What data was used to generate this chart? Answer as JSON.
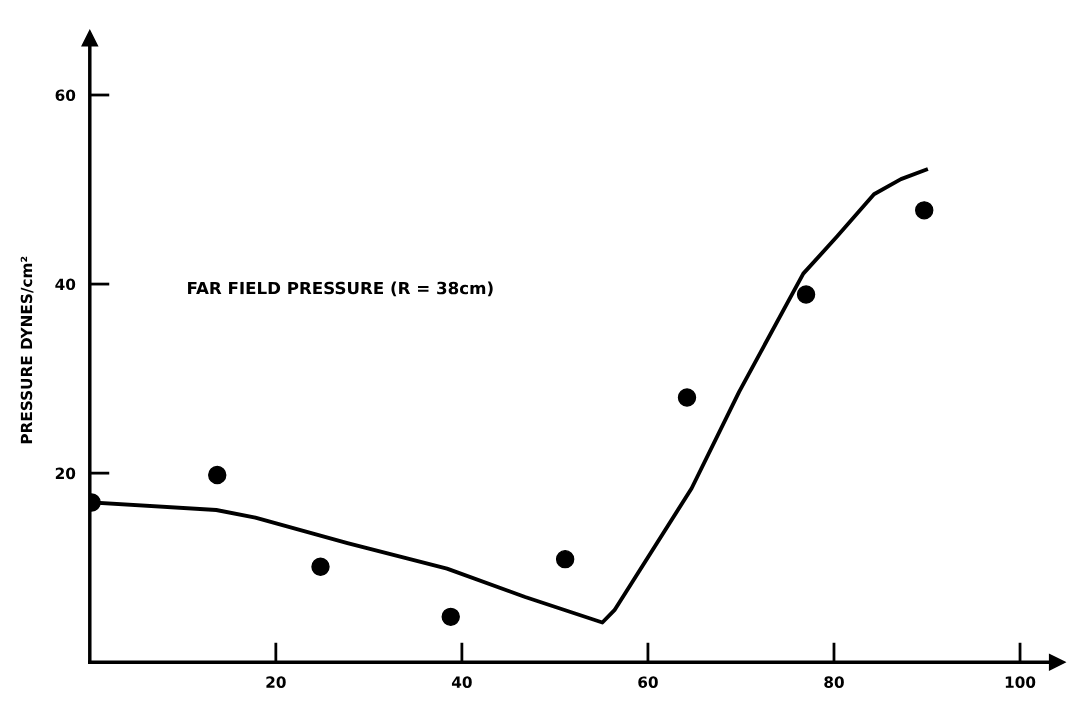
{
  "chart_data": {
    "type": "scatter",
    "ylabel": "PRESSURE DYNES/cm²",
    "annotations": [
      "FAR FIELD PRESSURE (R = 38cm)"
    ],
    "series": [
      {
        "color": "#000000",
        "marker": "circle",
        "x": [
          0.2,
          13.7,
          24.8,
          38.8,
          51.1,
          64.2,
          77.0,
          89.7
        ],
        "values": [
          16.9,
          19.8,
          10.1,
          4.8,
          10.9,
          28.0,
          38.9,
          47.8
        ]
      },
      {
        "type": "line",
        "color": "#000000",
        "marker": "none",
        "line_style": "solid",
        "x": [
          0.2,
          13.6,
          17.8,
          27.7,
          38.4,
          46.8,
          55.1,
          56.4,
          64.7,
          69.8,
          76.7,
          80.3,
          84.3,
          87.2,
          89.9
        ],
        "values": [
          16.9,
          16.1,
          15.3,
          12.6,
          9.9,
          6.9,
          4.2,
          5.5,
          18.4,
          28.6,
          41.1,
          45.0,
          49.5,
          51.1,
          52.1
        ]
      }
    ],
    "xlim": [
      0,
      104
    ],
    "ylim": [
      0,
      66
    ],
    "xticks": [
      20,
      40,
      60,
      80,
      100
    ],
    "yticks": [
      20,
      40,
      60
    ],
    "grid": false
  }
}
